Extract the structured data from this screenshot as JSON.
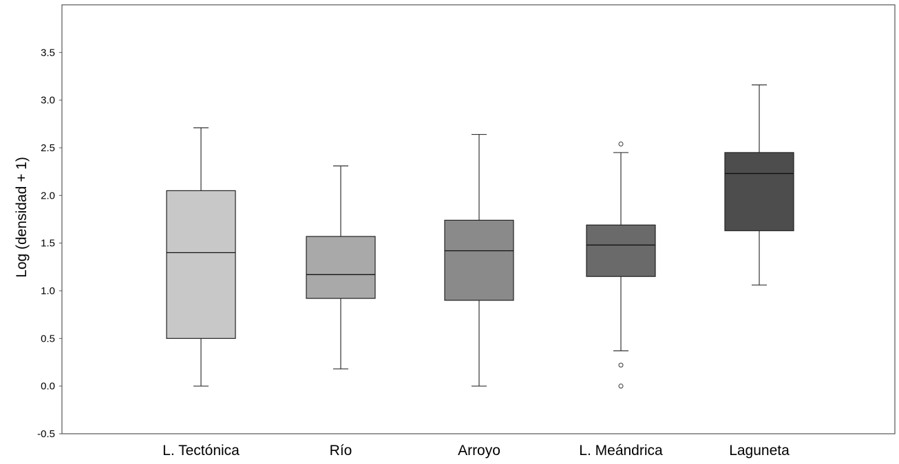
{
  "chart_data": {
    "type": "boxplot",
    "title": "",
    "xlabel": "",
    "ylabel": "Log (densidad + 1)",
    "ylim": [
      -0.5,
      4.0
    ],
    "yticks": [
      "-0.5",
      "0.0",
      "0.5",
      "1.0",
      "1.5",
      "2.0",
      "2.5",
      "3.0",
      "3.5"
    ],
    "grid": false,
    "legend": "none",
    "categories": [
      "L. Tectónica",
      "Río",
      "Arroyo",
      "L. Meándrica",
      "Laguneta"
    ],
    "boxes": [
      {
        "category": "L. Tectónica",
        "whisker_low": 0.0,
        "q1": 0.5,
        "median": 1.4,
        "q3": 2.05,
        "whisker_high": 2.71,
        "outliers": [],
        "color": "#c8c8c8"
      },
      {
        "category": "Río",
        "whisker_low": 0.18,
        "q1": 0.92,
        "median": 1.17,
        "q3": 1.57,
        "whisker_high": 2.31,
        "outliers": [],
        "color": "#a9a9a9"
      },
      {
        "category": "Arroyo",
        "whisker_low": 0.0,
        "q1": 0.9,
        "median": 1.42,
        "q3": 1.74,
        "whisker_high": 2.64,
        "outliers": [],
        "color": "#8a8a8a"
      },
      {
        "category": "L. Meándrica",
        "whisker_low": 0.37,
        "q1": 1.15,
        "median": 1.48,
        "q3": 1.69,
        "whisker_high": 2.45,
        "outliers": [
          2.54,
          0.22,
          0.0
        ],
        "color": "#6a6a6a"
      },
      {
        "category": "Laguneta",
        "whisker_low": 1.06,
        "q1": 1.63,
        "median": 2.23,
        "q3": 2.45,
        "whisker_high": 3.16,
        "outliers": [],
        "color": "#4d4d4d"
      }
    ]
  }
}
